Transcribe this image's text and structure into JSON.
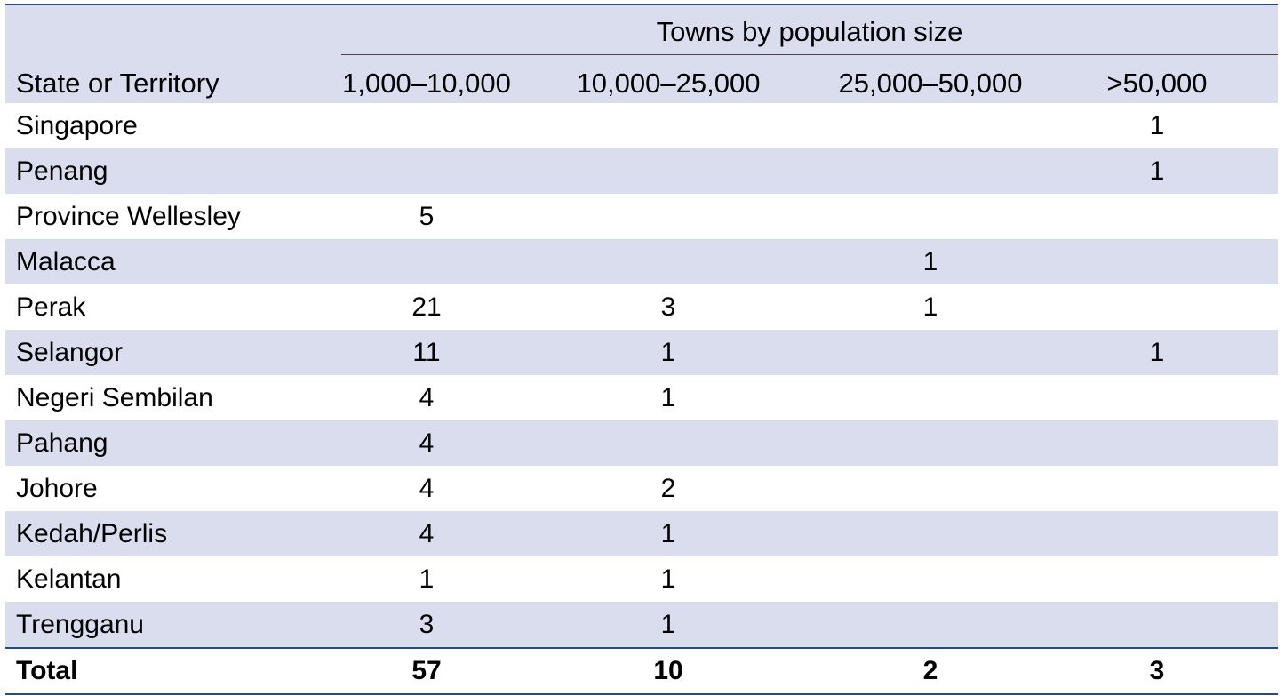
{
  "header": {
    "group_title": "Towns by population size",
    "state_col": "State or Territory",
    "columns": [
      "1,000–10,000",
      "10,000–25,000",
      "25,000–50,000",
      ">50,000"
    ]
  },
  "rows": [
    {
      "state": "Singapore",
      "values": [
        "",
        "",
        "",
        "1"
      ]
    },
    {
      "state": "Penang",
      "values": [
        "",
        "",
        "",
        "1"
      ]
    },
    {
      "state": "Province Wellesley",
      "values": [
        "5",
        "",
        "",
        ""
      ]
    },
    {
      "state": "Malacca",
      "values": [
        "",
        "",
        "1",
        ""
      ]
    },
    {
      "state": "Perak",
      "values": [
        "21",
        "3",
        "1",
        ""
      ]
    },
    {
      "state": "Selangor",
      "values": [
        "11",
        "1",
        "",
        "1"
      ]
    },
    {
      "state": "Negeri Sembilan",
      "values": [
        "4",
        "1",
        "",
        ""
      ]
    },
    {
      "state": "Pahang",
      "values": [
        "4",
        "",
        "",
        ""
      ]
    },
    {
      "state": "Johore",
      "values": [
        "4",
        "2",
        "",
        ""
      ]
    },
    {
      "state": "Kedah/Perlis",
      "values": [
        "4",
        "1",
        "",
        ""
      ]
    },
    {
      "state": "Kelantan",
      "values": [
        "1",
        "1",
        "",
        ""
      ]
    },
    {
      "state": "Trengganu",
      "values": [
        "3",
        "1",
        "",
        ""
      ]
    }
  ],
  "total": {
    "label": "Total",
    "values": [
      "57",
      "10",
      "2",
      "3"
    ]
  },
  "colors": {
    "rule": "#2b4a7a",
    "shade": "#d9ddee"
  }
}
